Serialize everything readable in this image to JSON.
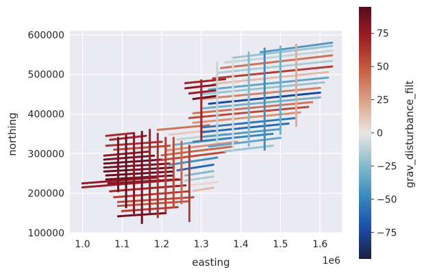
{
  "chart_data": {
    "type": "scatter",
    "title": "",
    "xlabel": "easting",
    "ylabel": "northing",
    "x_offset_label": "1e6",
    "xlim": [
      0.968,
      1.655
    ],
    "ylim": [
      100000,
      610000
    ],
    "xticks": [
      1.0,
      1.1,
      1.2,
      1.3,
      1.4,
      1.5,
      1.6
    ],
    "xtick_labels": [
      "1.0",
      "1.1",
      "1.2",
      "1.3",
      "1.4",
      "1.5",
      "1.6"
    ],
    "yticks": [
      100000,
      200000,
      300000,
      400000,
      500000,
      600000
    ],
    "ytick_labels": [
      "100000",
      "200000",
      "300000",
      "400000",
      "500000",
      "600000"
    ],
    "grid": true,
    "background": "#EAEAF2",
    "colorbar": {
      "label": "grav_disturbance_filt",
      "vmin": -95,
      "vmax": 95,
      "ticks": [
        75,
        50,
        25,
        0,
        -25,
        -50,
        -75
      ],
      "tick_labels": [
        "75",
        "50",
        "25",
        "0",
        "−25",
        "−50",
        "−75"
      ],
      "colormap": [
        "#1B1E3F",
        "#1A4FA8",
        "#3A89C0",
        "#89BCCB",
        "#E9E6E2",
        "#DCA38A",
        "#C55F43",
        "#A01F25",
        "#5A0A1E"
      ]
    },
    "flight_lines": [
      {
        "x0": 1.055,
        "y0": 295000,
        "x1": 1.165,
        "y1": 305000,
        "value": 78
      },
      {
        "x0": 1.055,
        "y0": 285000,
        "x1": 1.18,
        "y1": 295000,
        "value": 85
      },
      {
        "x0": 1.055,
        "y0": 275000,
        "x1": 1.2,
        "y1": 285000,
        "value": 90
      },
      {
        "x0": 1.055,
        "y0": 265000,
        "x1": 1.22,
        "y1": 275000,
        "value": 85
      },
      {
        "x0": 1.055,
        "y0": 255000,
        "x1": 1.23,
        "y1": 265000,
        "value": 90
      },
      {
        "x0": 1.06,
        "y0": 245000,
        "x1": 1.23,
        "y1": 255000,
        "value": 92
      },
      {
        "x0": 1.06,
        "y0": 235000,
        "x1": 1.23,
        "y1": 245000,
        "value": 88
      },
      {
        "x0": 1.065,
        "y0": 225000,
        "x1": 1.24,
        "y1": 235000,
        "value": 80
      },
      {
        "x0": 1.0,
        "y0": 215000,
        "x1": 1.25,
        "y1": 235000,
        "value": 75
      },
      {
        "x0": 1.0,
        "y0": 225000,
        "x1": 1.19,
        "y1": 240000,
        "value": 78
      },
      {
        "x0": 1.07,
        "y0": 205000,
        "x1": 1.26,
        "y1": 220000,
        "value": 70
      },
      {
        "x0": 1.08,
        "y0": 190000,
        "x1": 1.27,
        "y1": 205000,
        "value": 60
      },
      {
        "x0": 1.09,
        "y0": 178000,
        "x1": 1.28,
        "y1": 190000,
        "value": 55
      },
      {
        "x0": 1.09,
        "y0": 168000,
        "x1": 1.27,
        "y1": 180000,
        "value": 50
      },
      {
        "x0": 1.1,
        "y0": 155000,
        "x1": 1.24,
        "y1": 165000,
        "value": 60
      },
      {
        "x0": 1.09,
        "y0": 142000,
        "x1": 1.21,
        "y1": 150000,
        "value": 88
      },
      {
        "x0": 1.07,
        "y0": 335000,
        "x1": 1.16,
        "y1": 345000,
        "value": 70
      },
      {
        "x0": 1.06,
        "y0": 320000,
        "x1": 1.2,
        "y1": 330000,
        "value": 65
      },
      {
        "x0": 1.08,
        "y0": 310000,
        "x1": 1.22,
        "y1": 320000,
        "value": 55
      },
      {
        "x0": 1.06,
        "y0": 345000,
        "x1": 1.13,
        "y1": 352000,
        "value": 68
      },
      {
        "x0": 1.19,
        "y0": 360000,
        "x1": 1.32,
        "y1": 372000,
        "value": 40
      },
      {
        "x0": 1.22,
        "y0": 348000,
        "x1": 1.33,
        "y1": 360000,
        "value": 10
      },
      {
        "x0": 1.24,
        "y0": 336000,
        "x1": 1.36,
        "y1": 350000,
        "value": -10
      },
      {
        "x0": 1.23,
        "y0": 322000,
        "x1": 1.38,
        "y1": 340000,
        "value": -30
      },
      {
        "x0": 1.21,
        "y0": 308000,
        "x1": 1.39,
        "y1": 330000,
        "value": 30
      },
      {
        "x0": 1.2,
        "y0": 296000,
        "x1": 1.38,
        "y1": 318000,
        "value": 45
      },
      {
        "x0": 1.2,
        "y0": 284000,
        "x1": 1.36,
        "y1": 304000,
        "value": 55
      },
      {
        "x0": 1.22,
        "y0": 272000,
        "x1": 1.34,
        "y1": 290000,
        "value": -45
      },
      {
        "x0": 1.24,
        "y0": 258000,
        "x1": 1.33,
        "y1": 272000,
        "value": -60
      },
      {
        "x0": 1.26,
        "y0": 245000,
        "x1": 1.33,
        "y1": 256000,
        "value": -25
      },
      {
        "x0": 1.26,
        "y0": 232000,
        "x1": 1.33,
        "y1": 242000,
        "value": -15
      },
      {
        "x0": 1.27,
        "y0": 220000,
        "x1": 1.34,
        "y1": 228000,
        "value": 5
      },
      {
        "x0": 1.28,
        "y0": 206000,
        "x1": 1.33,
        "y1": 214000,
        "value": 15
      },
      {
        "x0": 1.28,
        "y0": 330000,
        "x1": 1.48,
        "y1": 350000,
        "value": -50
      },
      {
        "x0": 1.3,
        "y0": 342000,
        "x1": 1.5,
        "y1": 362000,
        "value": -40
      },
      {
        "x0": 1.3,
        "y0": 354000,
        "x1": 1.52,
        "y1": 376000,
        "value": -60
      },
      {
        "x0": 1.3,
        "y0": 366000,
        "x1": 1.54,
        "y1": 390000,
        "value": -55
      },
      {
        "x0": 1.32,
        "y0": 318000,
        "x1": 1.5,
        "y1": 340000,
        "value": -35
      },
      {
        "x0": 1.36,
        "y0": 306000,
        "x1": 1.48,
        "y1": 320000,
        "value": -20
      },
      {
        "x0": 1.28,
        "y0": 378000,
        "x1": 1.55,
        "y1": 404000,
        "value": 30
      },
      {
        "x0": 1.27,
        "y0": 390000,
        "x1": 1.57,
        "y1": 418000,
        "value": 55
      },
      {
        "x0": 1.28,
        "y0": 402000,
        "x1": 1.58,
        "y1": 430000,
        "value": 40
      },
      {
        "x0": 1.3,
        "y0": 414000,
        "x1": 1.6,
        "y1": 442000,
        "value": -30
      },
      {
        "x0": 1.32,
        "y0": 426000,
        "x1": 1.6,
        "y1": 454000,
        "value": -75
      },
      {
        "x0": 1.3,
        "y0": 438000,
        "x1": 1.6,
        "y1": 466000,
        "value": 35
      },
      {
        "x0": 1.3,
        "y0": 450000,
        "x1": 1.61,
        "y1": 480000,
        "value": -20
      },
      {
        "x0": 1.32,
        "y0": 462000,
        "x1": 1.62,
        "y1": 492000,
        "value": -35
      },
      {
        "x0": 1.33,
        "y0": 476000,
        "x1": 1.62,
        "y1": 506000,
        "value": 15
      },
      {
        "x0": 1.33,
        "y0": 490000,
        "x1": 1.63,
        "y1": 520000,
        "value": 60
      },
      {
        "x0": 1.34,
        "y0": 504000,
        "x1": 1.63,
        "y1": 534000,
        "value": -15
      },
      {
        "x0": 1.35,
        "y0": 516000,
        "x1": 1.63,
        "y1": 548000,
        "value": 40
      },
      {
        "x0": 1.36,
        "y0": 530000,
        "x1": 1.63,
        "y1": 560000,
        "value": -10
      },
      {
        "x0": 1.38,
        "y0": 542000,
        "x1": 1.63,
        "y1": 572000,
        "value": -20
      },
      {
        "x0": 1.45,
        "y0": 556000,
        "x1": 1.63,
        "y1": 580000,
        "value": -40
      },
      {
        "x0": 1.26,
        "y0": 478000,
        "x1": 1.36,
        "y1": 488000,
        "value": 70
      },
      {
        "x0": 1.26,
        "y0": 465000,
        "x1": 1.34,
        "y1": 474000,
        "value": 80
      },
      {
        "x0": 1.27,
        "y0": 452000,
        "x1": 1.34,
        "y1": 460000,
        "value": 75
      },
      {
        "x0": 1.28,
        "y0": 438000,
        "x1": 1.34,
        "y1": 446000,
        "value": 90
      },
      {
        "x0": 1.09,
        "y0": 340000,
        "x1": 1.09,
        "y1": 205000,
        "value": 85
      },
      {
        "x0": 1.11,
        "y0": 345000,
        "x1": 1.11,
        "y1": 165000,
        "value": 90
      },
      {
        "x0": 1.13,
        "y0": 350000,
        "x1": 1.13,
        "y1": 150000,
        "value": 80
      },
      {
        "x0": 1.15,
        "y0": 355000,
        "x1": 1.15,
        "y1": 125000,
        "value": 88
      },
      {
        "x0": 1.17,
        "y0": 360000,
        "x1": 1.17,
        "y1": 150000,
        "value": 75
      },
      {
        "x0": 1.19,
        "y0": 350000,
        "x1": 1.19,
        "y1": 140000,
        "value": 65
      },
      {
        "x0": 1.21,
        "y0": 340000,
        "x1": 1.21,
        "y1": 155000,
        "value": 60
      },
      {
        "x0": 1.23,
        "y0": 340000,
        "x1": 1.23,
        "y1": 165000,
        "value": 55
      },
      {
        "x0": 1.25,
        "y0": 330000,
        "x1": 1.25,
        "y1": 175000,
        "value": 45
      },
      {
        "x0": 1.27,
        "y0": 320000,
        "x1": 1.27,
        "y1": 130000,
        "value": 60
      },
      {
        "x0": 1.3,
        "y0": 485000,
        "x1": 1.3,
        "y1": 335000,
        "value": 70
      },
      {
        "x0": 1.34,
        "y0": 530000,
        "x1": 1.34,
        "y1": 330000,
        "value": -10
      },
      {
        "x0": 1.38,
        "y0": 540000,
        "x1": 1.38,
        "y1": 310000,
        "value": -5
      },
      {
        "x0": 1.42,
        "y0": 555000,
        "x1": 1.42,
        "y1": 320000,
        "value": -25
      },
      {
        "x0": 1.46,
        "y0": 565000,
        "x1": 1.46,
        "y1": 310000,
        "value": -45
      },
      {
        "x0": 1.5,
        "y0": 570000,
        "x1": 1.5,
        "y1": 350000,
        "value": -30
      },
      {
        "x0": 1.54,
        "y0": 575000,
        "x1": 1.54,
        "y1": 370000,
        "value": 20
      }
    ]
  }
}
